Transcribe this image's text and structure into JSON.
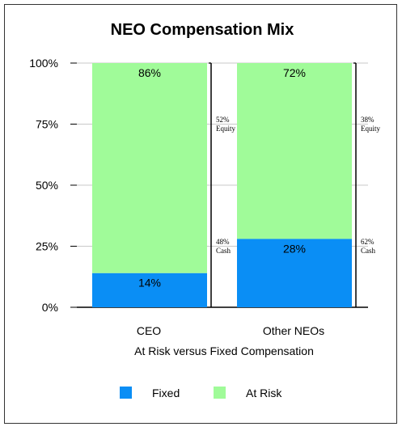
{
  "chart_data": {
    "type": "bar",
    "stacked": true,
    "title": "NEO Compensation Mix",
    "xlabel": "At Risk versus Fixed Compensation",
    "ylabel": "",
    "ylim": [
      0,
      100
    ],
    "yticks": [
      "0%",
      "25%",
      "50%",
      "75%",
      "100%"
    ],
    "categories": [
      "CEO",
      "Other NEOs"
    ],
    "series": [
      {
        "name": "Fixed",
        "values": [
          14,
          28
        ],
        "labels": [
          "14%",
          "28%"
        ],
        "color": "#0a8ef5"
      },
      {
        "name": "At Risk",
        "values": [
          86,
          72
        ],
        "labels": [
          "86%",
          "72%"
        ],
        "color": "#a0fb99"
      }
    ],
    "annotations": [
      {
        "category": "CEO",
        "equity": [
          "52%",
          "Equity"
        ],
        "cash": [
          "48%",
          "Cash"
        ]
      },
      {
        "category": "Other NEOs",
        "equity": [
          "38%",
          "Equity"
        ],
        "cash": [
          "62%",
          "Cash"
        ]
      }
    ],
    "legend_position": "bottom",
    "grid": true
  }
}
